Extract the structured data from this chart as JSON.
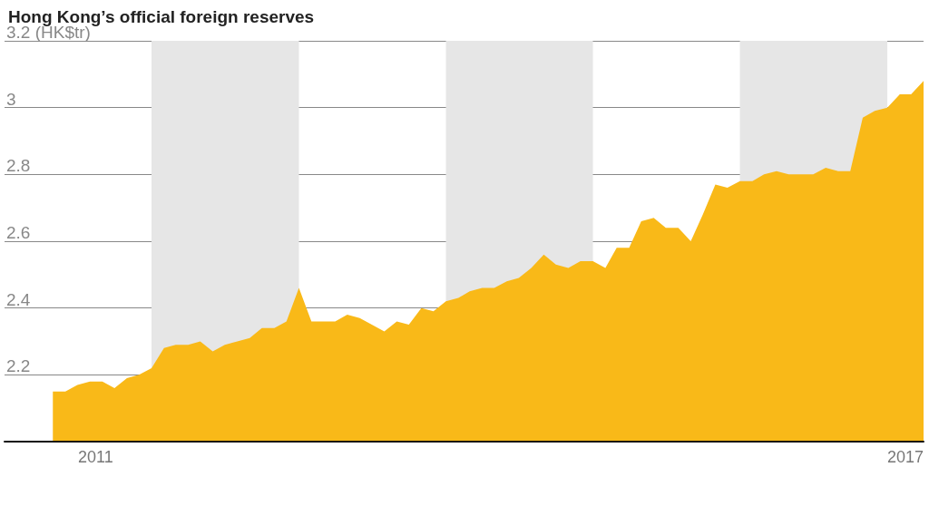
{
  "chart_data": {
    "type": "area",
    "title": "Hong Kong’s official foreign reserves",
    "x": [
      "2011-05",
      "2011-06",
      "2011-07",
      "2011-08",
      "2011-09",
      "2011-10",
      "2011-11",
      "2011-12",
      "2012-01",
      "2012-02",
      "2012-03",
      "2012-04",
      "2012-05",
      "2012-06",
      "2012-07",
      "2012-08",
      "2012-09",
      "2012-10",
      "2012-11",
      "2012-12",
      "2013-01",
      "2013-02",
      "2013-03",
      "2013-04",
      "2013-05",
      "2013-06",
      "2013-07",
      "2013-08",
      "2013-09",
      "2013-10",
      "2013-11",
      "2013-12",
      "2014-01",
      "2014-02",
      "2014-03",
      "2014-04",
      "2014-05",
      "2014-06",
      "2014-07",
      "2014-08",
      "2014-09",
      "2014-10",
      "2014-11",
      "2014-12",
      "2015-01",
      "2015-02",
      "2015-03",
      "2015-04",
      "2015-05",
      "2015-06",
      "2015-07",
      "2015-08",
      "2015-09",
      "2015-10",
      "2015-11",
      "2015-12",
      "2016-01",
      "2016-02",
      "2016-03",
      "2016-04",
      "2016-05",
      "2016-06",
      "2016-07",
      "2016-08",
      "2016-09",
      "2016-10",
      "2016-11",
      "2016-12",
      "2017-01",
      "2017-02",
      "2017-03",
      "2017-04"
    ],
    "series": [
      {
        "color": "#f9b918",
        "values": [
          2.15,
          2.15,
          2.17,
          2.18,
          2.18,
          2.16,
          2.19,
          2.2,
          2.22,
          2.28,
          2.29,
          2.29,
          2.3,
          2.27,
          2.29,
          2.3,
          2.31,
          2.34,
          2.34,
          2.36,
          2.46,
          2.36,
          2.36,
          2.36,
          2.38,
          2.37,
          2.35,
          2.33,
          2.36,
          2.35,
          2.4,
          2.39,
          2.42,
          2.43,
          2.45,
          2.46,
          2.46,
          2.48,
          2.49,
          2.52,
          2.56,
          2.53,
          2.52,
          2.54,
          2.54,
          2.52,
          2.58,
          2.58,
          2.66,
          2.67,
          2.64,
          2.64,
          2.6,
          2.68,
          2.77,
          2.76,
          2.78,
          2.78,
          2.8,
          2.81,
          2.8,
          2.8,
          2.8,
          2.82,
          2.81,
          2.81,
          2.97,
          2.99,
          3.0,
          3.04,
          3.04,
          3.08
        ]
      }
    ],
    "xlim": [
      "2011-01",
      "2017-04"
    ],
    "xticks": [
      {
        "value": "2011-08-15",
        "label": "2011"
      },
      {
        "value": "2017-02-15",
        "label": "2017"
      }
    ],
    "ylim": [
      2.0,
      3.2
    ],
    "yticks": [
      {
        "value": 2.0,
        "label": null
      },
      2.2,
      2.4,
      2.6,
      2.8,
      3,
      {
        "value": 3.2,
        "label": "3.2 (HK$tr)"
      }
    ],
    "bands": [
      {
        "axis": "x",
        "from": "2012-01",
        "to": "2013-01",
        "color": "#e6e6e6"
      },
      {
        "axis": "x",
        "from": "2014-01",
        "to": "2015-01",
        "color": "#e6e6e6"
      },
      {
        "axis": "x",
        "from": "2016-01",
        "to": "2017-01",
        "color": "#e6e6e6"
      }
    ],
    "grid": "y",
    "marker": "none"
  }
}
